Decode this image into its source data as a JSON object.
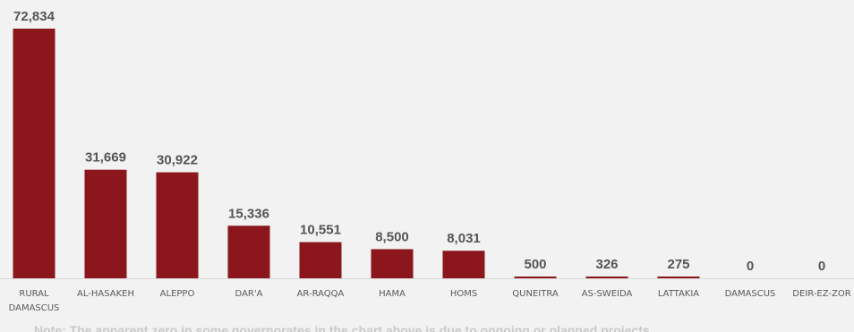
{
  "chart_data": {
    "type": "bar",
    "categories": [
      [
        "RURAL",
        "DAMASCUS"
      ],
      [
        "AL-HASAKEH"
      ],
      [
        "ALEPPO"
      ],
      [
        "DAR'A"
      ],
      [
        "AR-RAQQA"
      ],
      [
        "HAMA"
      ],
      [
        "HOMS"
      ],
      [
        "QUNEITRA"
      ],
      [
        "AS-SWEIDA"
      ],
      [
        "LATTAKIA"
      ],
      [
        "DAMASCUS"
      ],
      [
        "DEIR-EZ-ZOR"
      ]
    ],
    "values": [
      72834,
      31669,
      30922,
      15336,
      10551,
      8500,
      8031,
      500,
      326,
      275,
      0,
      0
    ],
    "value_labels": [
      "72,834",
      "31,669",
      "30,922",
      "15,336",
      "10,551",
      "8,500",
      "8,031",
      "500",
      "326",
      "275",
      "0",
      "0"
    ],
    "title": "",
    "xlabel": "",
    "ylabel": "",
    "ylim": [
      0,
      72834
    ],
    "grid": false,
    "legend": "none",
    "bar_color": "#8b161b",
    "label_color": "#555555",
    "note": "Note: The apparent zero in some governorates in the chart above is due to ongoing or planned projects"
  }
}
